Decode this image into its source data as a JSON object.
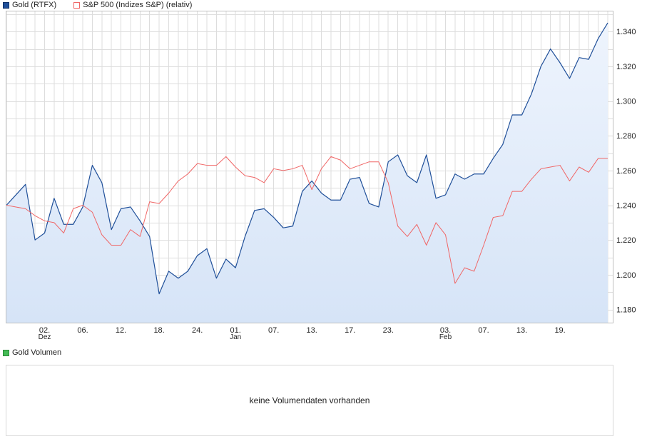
{
  "legend": {
    "gold_label": "Gold (RTFX)",
    "sp_label": "S&P 500 (Indizes S&P) (relativ)",
    "volume_label": "Gold Volumen"
  },
  "volume_message": "keine Volumendaten vorhanden",
  "colors": {
    "gold_line": "#1f4f99",
    "gold_fill": "#d6e4f7",
    "sp_line": "#f06666",
    "volume_swatch": "#44bb55",
    "grid": "#dddddd"
  },
  "chart_data": {
    "type": "line",
    "title": "",
    "xlabel": "",
    "ylabel": "",
    "ylim": [
      1.172,
      1.352
    ],
    "y_ticks": [
      "1.180",
      "1.200",
      "1.220",
      "1.240",
      "1.260",
      "1.280",
      "1.300",
      "1.320",
      "1.340"
    ],
    "x_tick_labels": [
      "02.",
      "06.",
      "12.",
      "18.",
      "24.",
      "01.",
      "07.",
      "13.",
      "17.",
      "23.",
      "03.",
      "07.",
      "13.",
      "19."
    ],
    "x_tick_index": [
      4,
      8,
      12,
      16,
      20,
      24,
      28,
      32,
      36,
      40,
      46,
      50,
      54,
      58
    ],
    "month_labels": [
      {
        "label": "Dez",
        "index": 4
      },
      {
        "label": "Jan",
        "index": 24
      },
      {
        "label": "Feb",
        "index": 46
      }
    ],
    "grid": true,
    "legend_position": "top-left",
    "series": [
      {
        "name": "Gold (RTFX)",
        "area": true,
        "values": [
          1.24,
          1.246,
          1.252,
          1.22,
          1.224,
          1.244,
          1.229,
          1.229,
          1.239,
          1.263,
          1.253,
          1.226,
          1.238,
          1.239,
          1.231,
          1.222,
          1.189,
          1.202,
          1.198,
          1.202,
          1.211,
          1.215,
          1.198,
          1.209,
          1.204,
          1.222,
          1.237,
          1.238,
          1.233,
          1.227,
          1.228,
          1.248,
          1.254,
          1.247,
          1.243,
          1.243,
          1.255,
          1.256,
          1.241,
          1.239,
          1.265,
          1.269,
          1.257,
          1.253,
          1.269,
          1.244,
          1.246,
          1.258,
          1.255,
          1.258,
          1.258,
          1.267,
          1.275,
          1.292,
          1.292,
          1.304,
          1.32,
          1.33,
          1.322,
          1.313,
          1.325,
          1.324,
          1.336,
          1.345
        ]
      },
      {
        "name": "S&P 500 (Indizes S&P) (relativ)",
        "area": false,
        "values": [
          1.24,
          1.239,
          1.238,
          1.234,
          1.231,
          1.23,
          1.224,
          1.238,
          1.24,
          1.236,
          1.223,
          1.217,
          1.217,
          1.226,
          1.222,
          1.242,
          1.241,
          1.247,
          1.254,
          1.258,
          1.264,
          1.263,
          1.263,
          1.268,
          1.262,
          1.257,
          1.256,
          1.253,
          1.261,
          1.26,
          1.261,
          1.263,
          1.249,
          1.261,
          1.268,
          1.266,
          1.261,
          1.263,
          1.265,
          1.265,
          1.253,
          1.228,
          1.222,
          1.229,
          1.217,
          1.23,
          1.223,
          1.195,
          1.204,
          1.202,
          1.217,
          1.233,
          1.234,
          1.248,
          1.248,
          1.255,
          1.261,
          1.262,
          1.263,
          1.254,
          1.262,
          1.259,
          1.267,
          1.267
        ]
      }
    ]
  }
}
